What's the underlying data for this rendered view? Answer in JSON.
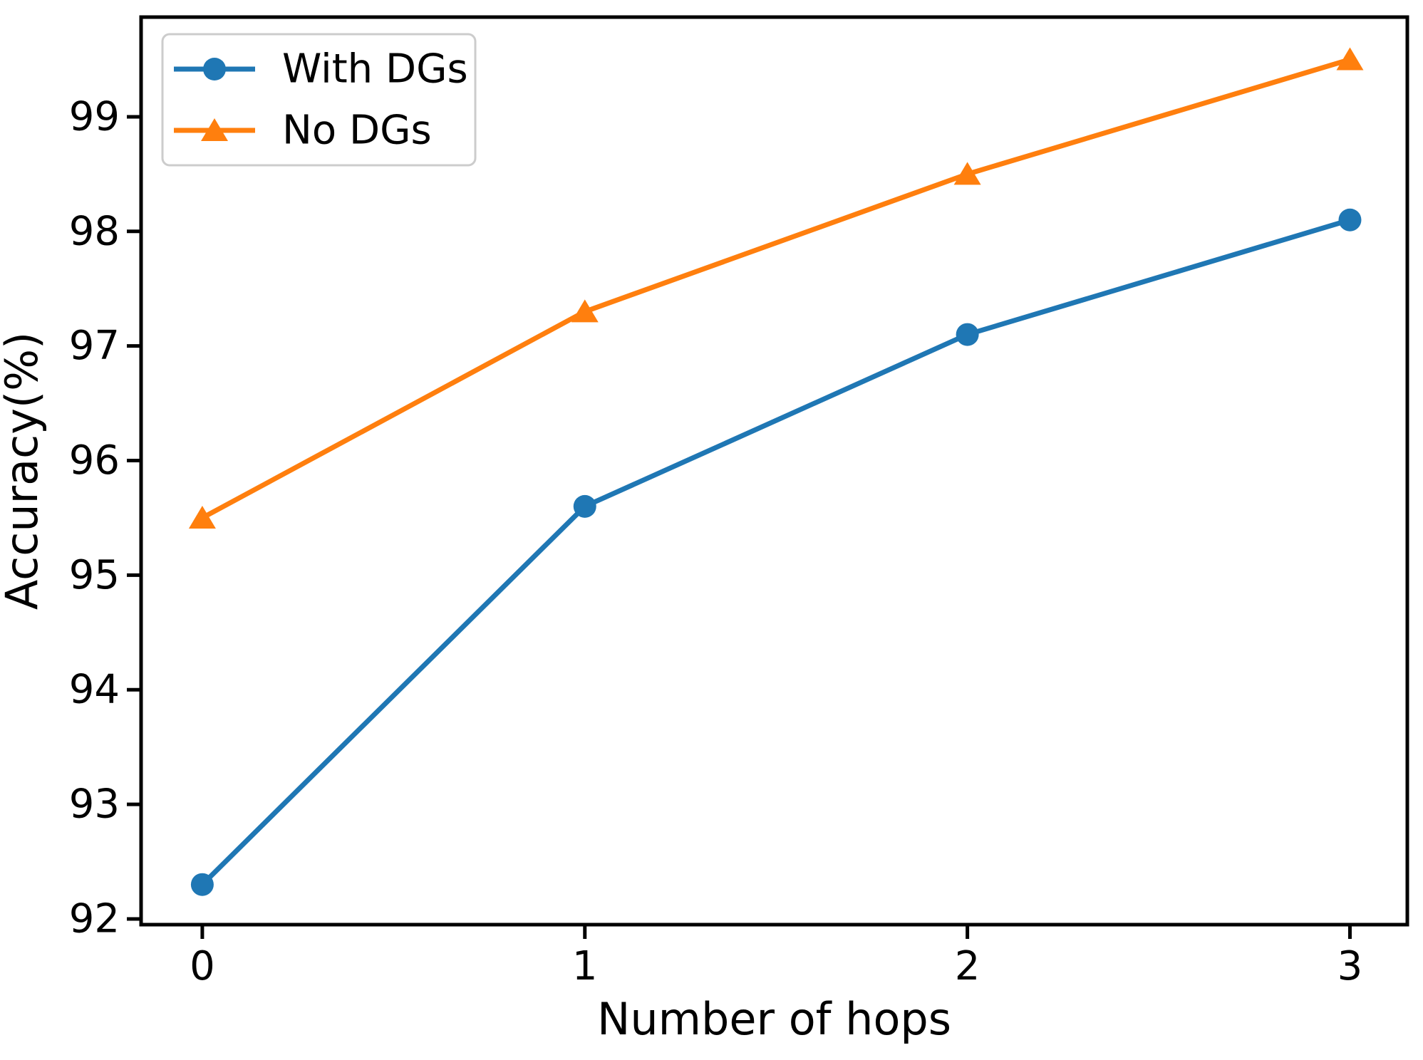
{
  "chart_data": {
    "type": "line",
    "title": "",
    "xlabel": "Number of hops",
    "ylabel": "Accuracy(%)",
    "x": [
      0,
      1,
      2,
      3
    ],
    "series": [
      {
        "name": "With DGs",
        "values": [
          92.3,
          95.6,
          97.1,
          98.1
        ],
        "color": "#1f77b4",
        "marker": "circle"
      },
      {
        "name": "No DGs",
        "values": [
          95.5,
          97.3,
          98.5,
          99.5
        ],
        "color": "#ff7f0e",
        "marker": "triangle-up"
      }
    ],
    "xticks": [
      0,
      1,
      2,
      3
    ],
    "xtick_labels": [
      "0",
      "1",
      "2",
      "3"
    ],
    "yticks": [
      92,
      93,
      94,
      95,
      96,
      97,
      98,
      99
    ],
    "ytick_labels": [
      "92",
      "93",
      "94",
      "95",
      "96",
      "97",
      "98",
      "99"
    ],
    "xlim": [
      -0.16,
      3.15
    ],
    "ylim": [
      91.95,
      99.87
    ],
    "grid": false,
    "legend": {
      "position": "upper-left",
      "items": [
        "With DGs",
        "No DGs"
      ]
    },
    "colors": {
      "axis": "#000000",
      "legend_border": "#cccccc",
      "background": "#ffffff"
    }
  }
}
